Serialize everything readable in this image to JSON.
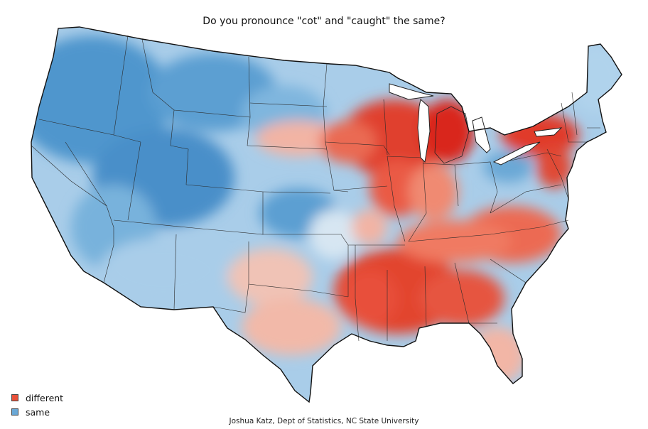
{
  "title": "Do you pronounce \"cot\" and \"caught\" the same?",
  "legend": [
    {
      "label": "different",
      "color": "#e8513a"
    },
    {
      "label": "same",
      "color": "#6aa8d6"
    }
  ],
  "credit": "Joshua Katz, Dept of Statistics, NC State University",
  "colors": {
    "same_dark": "#3d8ac7",
    "same_mid": "#6aa8d6",
    "same_light": "#b8d7ee",
    "neutral": "#e9d6d4",
    "diff_light": "#f6b3a0",
    "diff_mid": "#ef6d54",
    "diff_dark": "#d9281f",
    "border": "#222222"
  }
}
